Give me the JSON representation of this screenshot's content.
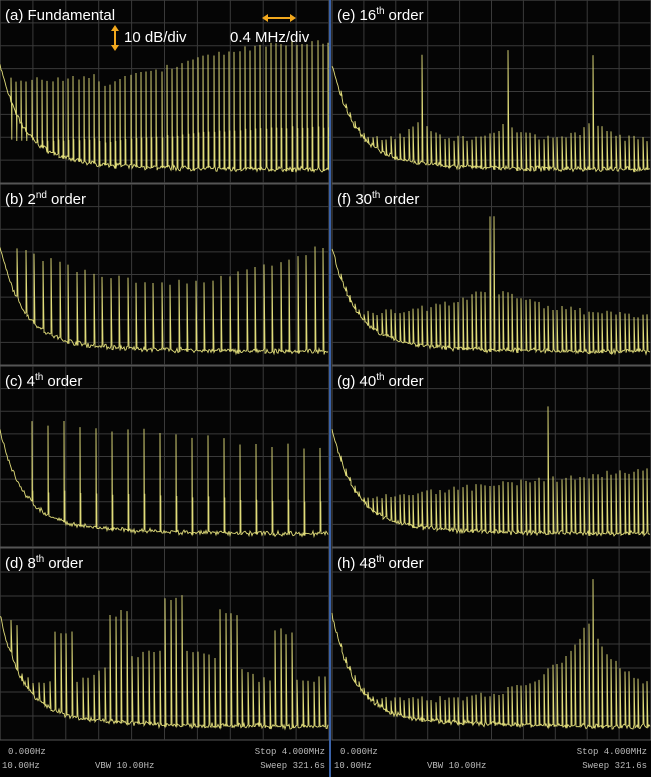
{
  "panels": [
    {
      "tag": "(a)",
      "text": "Fundamental"
    },
    {
      "tag": "(b)",
      "number": "2",
      "sup": "nd",
      "text": "order"
    },
    {
      "tag": "(c)",
      "number": "4",
      "sup": "th",
      "text": "order"
    },
    {
      "tag": "(d)",
      "number": "8",
      "sup": "th",
      "text": "order"
    },
    {
      "tag": "(e)",
      "number": "16",
      "sup": "th",
      "text": "order"
    },
    {
      "tag": "(f)",
      "number": "30",
      "sup": "th",
      "text": "order"
    },
    {
      "tag": "(g)",
      "number": "40",
      "sup": "th",
      "text": "order"
    },
    {
      "tag": "(h)",
      "number": "48",
      "sup": "th",
      "text": "order"
    }
  ],
  "scale": {
    "vertical": "10 dB/div",
    "horizontal": "0.4 MHz/div"
  },
  "footer": [
    {
      "start": "0.000Hz",
      "stop": "Stop 4.000MHz",
      "rbw": "10.00Hz",
      "vbw": "VBW 10.00Hz",
      "sweep": "Sweep 321.6s"
    },
    {
      "start": "0.000Hz",
      "stop": "Stop 4.000MHz",
      "rbw": "10.00Hz",
      "vbw": "VBW 10.00Hz",
      "sweep": "Sweep 321.6s"
    }
  ]
}
